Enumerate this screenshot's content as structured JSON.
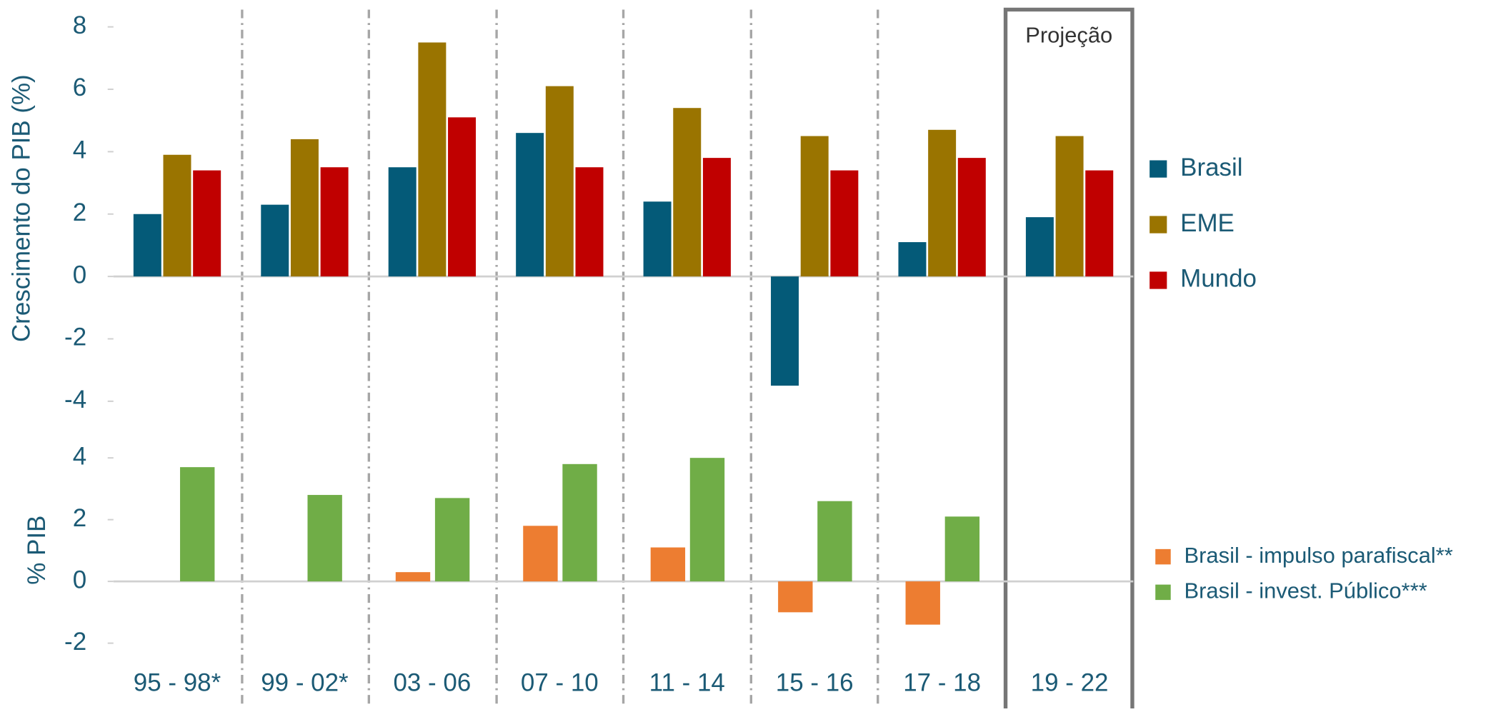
{
  "chart_data": [
    {
      "type": "bar",
      "y_label": "Crescimento do PIB (%)",
      "annotation": "Projeção",
      "categories": [
        "95 - 98*",
        "99 - 02*",
        "03 - 06",
        "07 - 10",
        "11 - 14",
        "15 - 16",
        "17 - 18",
        "19 - 22"
      ],
      "series": [
        {
          "name": "Brasil",
          "color": "#045a78",
          "values": [
            2.0,
            2.3,
            3.5,
            4.6,
            2.4,
            -3.5,
            1.1,
            1.9
          ]
        },
        {
          "name": "EME",
          "color": "#9a7400",
          "values": [
            3.9,
            4.4,
            7.5,
            6.1,
            5.4,
            4.5,
            4.7,
            4.5
          ]
        },
        {
          "name": "Mundo",
          "color": "#c00000",
          "values": [
            3.4,
            3.5,
            5.1,
            3.5,
            3.8,
            3.4,
            3.8,
            3.4
          ]
        }
      ],
      "ylim": [
        -4,
        8
      ],
      "yticks": [
        -4,
        -2,
        0,
        2,
        4,
        6,
        8
      ],
      "grid": false,
      "legend": "right"
    },
    {
      "type": "bar",
      "y_label": "% PIB",
      "series": [
        {
          "name": "Brasil - impulso parafiscal**",
          "color": "#ed7d31",
          "values": [
            null,
            null,
            0.3,
            1.8,
            1.1,
            -1.0,
            -1.4,
            null
          ]
        },
        {
          "name": "Brasil - invest. Público***",
          "color": "#70ad47",
          "values": [
            3.7,
            2.8,
            2.7,
            3.8,
            4.0,
            2.6,
            2.1,
            null
          ]
        }
      ],
      "ylim": [
        -2,
        4
      ],
      "yticks": [
        -2,
        0,
        2,
        4
      ],
      "grid": false,
      "legend": "right"
    }
  ]
}
